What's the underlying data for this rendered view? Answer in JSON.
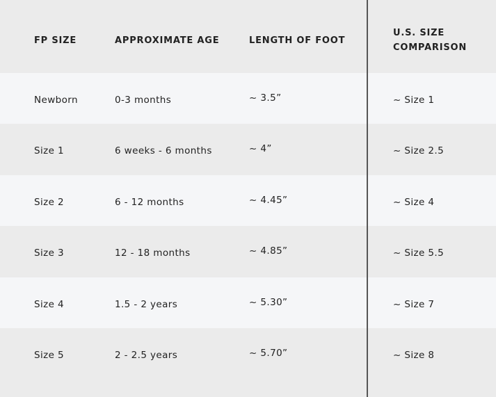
{
  "headers": [
    "FP SIZE",
    "APPROXIMATE AGE",
    "LENGTH OF FOOT",
    "U.S. SIZE COMPARISON"
  ],
  "header_us_lines": [
    "U.S. SIZE",
    "COMPARISON"
  ],
  "rows": [
    [
      "Newborn",
      "0-3 months",
      "~ 3.5”",
      "~ Size 1"
    ],
    [
      "Size 1",
      "6 weeks - 6 months",
      "~ 4”",
      "~ Size 2.5"
    ],
    [
      "Size 2",
      "6 - 12 months",
      "~ 4.45”",
      "~ Size 4"
    ],
    [
      "Size 3",
      "12 - 18 months",
      "~ 4.85”",
      "~ Size 5.5"
    ],
    [
      "Size 4",
      "1.5 - 2 years",
      "~ 5.30”",
      "~ Size 7"
    ],
    [
      "Size 5",
      "2 - 2.5 years",
      "~ 5.70”",
      "~ Size 8"
    ]
  ],
  "colors": {
    "header_bg": "#ebebeb",
    "row_light": "#f5f6f8",
    "row_dark": "#ebebeb",
    "divider": "#555555"
  }
}
